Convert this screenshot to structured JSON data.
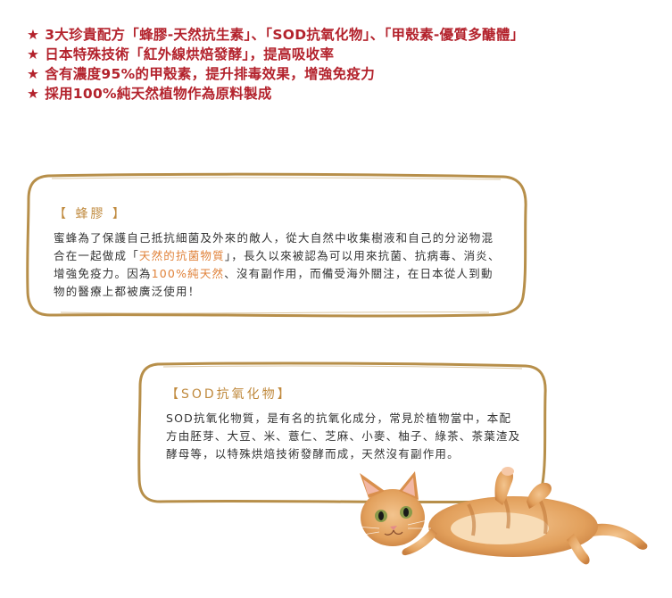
{
  "features": [
    {
      "star": "★",
      "text": "3大珍貴配方「蜂膠-天然抗生素」、「SOD抗氧化物」、「甲殼素-優質多醣體」"
    },
    {
      "star": "★",
      "text": "日本特殊技術「紅外線烘焙發酵」，提高吸收率"
    },
    {
      "star": "★",
      "text": "含有濃度95%的甲殼素，提升排毒效果，增強免疫力"
    },
    {
      "star": "★",
      "text": "採用100%純天然植物作為原料製成"
    }
  ],
  "propolis": {
    "title": "【 蜂膠 】",
    "body": [
      "蜜蜂為了保護自己抵抗細菌及外來的敵人，從大自然中收集樹液和自己的分泌物混合在一起做成「",
      "天然的抗菌物質",
      "」，長久以來被認為可以用來抗菌、抗病毒、消炎、增強免疫力。因為",
      "100%純天然",
      "、沒有副作用，而備受海外關注，在日本從人到動物的醫療上都被廣泛使用！"
    ]
  },
  "sod": {
    "title": "【SOD抗氧化物】",
    "body": "SOD抗氧化物質，是有名的抗氧化成分，常見於植物當中，本配方由胚芽、大豆、米、薏仁、芝麻、小麥、柚子、綠茶、茶葉渣及酵母等，以特殊烘焙技術發酵而成，天然沒有副作用。"
  },
  "colors": {
    "feature_red": "#b3222c",
    "frame_gold": "#b78f4a",
    "title_gold": "#c08a3e",
    "highlight_orange": "#e0823a"
  }
}
